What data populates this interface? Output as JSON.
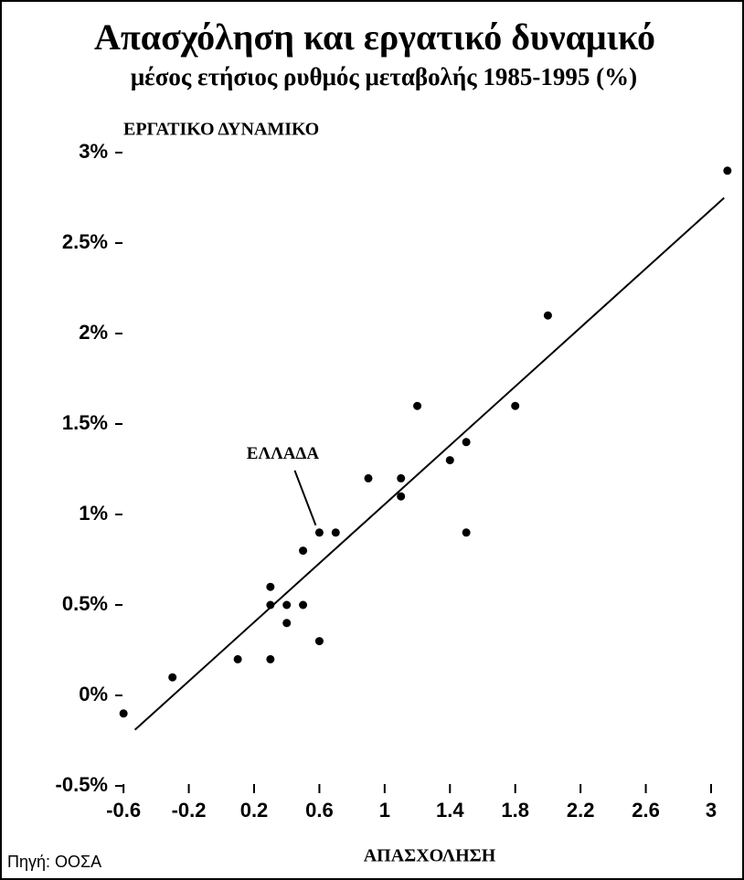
{
  "chart_data": {
    "type": "scatter",
    "title": "Απασχόληση και εργατικό δυναμικό",
    "subtitle": "μέσος ετήσιος ρυθμός μεταβολής 1985-1995 (%)",
    "y_label": "ΕΡΓΑΤΙΚΟ ΔΥΝΑΜΙΚΟ",
    "x_label": "ΑΠΑΣΧΟΛΗΣΗ",
    "source": "Πηγή: ΟΟΣΑ",
    "annotation": {
      "text": "ΕΛΛΑΔΑ",
      "x": 0.6,
      "y": 0.9
    },
    "x": [
      -0.6,
      -0.3,
      0.1,
      0.3,
      0.3,
      0.3,
      0.4,
      0.4,
      0.5,
      0.5,
      0.6,
      0.6,
      0.7,
      0.9,
      1.1,
      1.1,
      1.2,
      1.4,
      1.5,
      1.5,
      1.8,
      2.0,
      3.1
    ],
    "values": [
      -0.1,
      0.1,
      0.2,
      0.2,
      0.6,
      0.5,
      0.5,
      0.4,
      0.5,
      0.8,
      0.3,
      0.9,
      0.9,
      1.2,
      1.2,
      1.1,
      1.6,
      1.3,
      1.4,
      0.9,
      1.6,
      2.1,
      2.9
    ],
    "color": "#000000",
    "trend_line": {
      "x": [
        -0.53,
        3.08
      ],
      "y": [
        -0.19,
        2.75
      ]
    },
    "xlim": [
      -0.64,
      3.14
    ],
    "xticks": [
      -0.6,
      -0.2,
      0.2,
      0.6,
      1,
      1.4,
      1.8,
      2.2,
      2.6,
      3
    ],
    "ylim": [
      -0.5,
      3
    ],
    "yticks": [
      {
        "value": -0.5,
        "label": "-0.5%"
      },
      {
        "value": 0,
        "label": "0%"
      },
      {
        "value": 0.5,
        "label": "0.5%"
      },
      {
        "value": 1,
        "label": "1%"
      },
      {
        "value": 1.5,
        "label": "1.5%"
      },
      {
        "value": 2,
        "label": "2%"
      },
      {
        "value": 2.5,
        "label": "2.5%"
      },
      {
        "value": 3,
        "label": "3%"
      }
    ]
  }
}
